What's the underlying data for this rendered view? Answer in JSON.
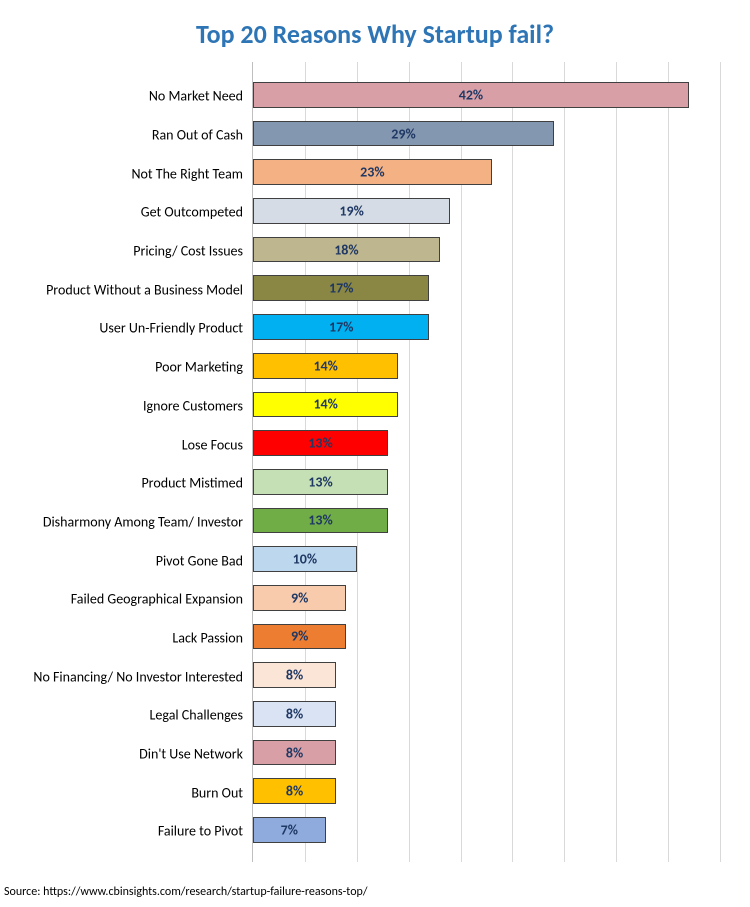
{
  "title": {
    "text": "Top 20 Reasons Why Startup fail?",
    "color": "#2e75b6",
    "fontsize": 26
  },
  "chart": {
    "type": "bar-horizontal",
    "xmax": 45,
    "gridline_step": 5,
    "gridline_color": "#d9d9d9",
    "axis_color": "#bfbfbf",
    "background_color": "#ffffff",
    "bar_border_color": "#404040",
    "label_fontsize": 14,
    "label_color": "#000000",
    "value_fontsize": 14,
    "value_color": "#1f3864",
    "bars": [
      {
        "label": "No Market Need",
        "value": 42,
        "text": "42%",
        "fill": "#d8a0a6"
      },
      {
        "label": "Ran Out of Cash",
        "value": 29,
        "text": "29%",
        "fill": "#8497b0"
      },
      {
        "label": "Not The Right Team",
        "value": 23,
        "text": "23%",
        "fill": "#f4b183"
      },
      {
        "label": "Get Outcompeted",
        "value": 19,
        "text": "19%",
        "fill": "#d6dce5"
      },
      {
        "label": "Pricing/ Cost Issues",
        "value": 18,
        "text": "18%",
        "fill": "#bdb68e"
      },
      {
        "label": "Product Without a Business Model",
        "value": 17,
        "text": "17%",
        "fill": "#8a8643"
      },
      {
        "label": "User Un-Friendly Product",
        "value": 17,
        "text": "17%",
        "fill": "#00b0f0"
      },
      {
        "label": "Poor Marketing",
        "value": 14,
        "text": "14%",
        "fill": "#ffc000"
      },
      {
        "label": "Ignore Customers",
        "value": 14,
        "text": "14%",
        "fill": "#ffff00"
      },
      {
        "label": "Lose Focus",
        "value": 13,
        "text": "13%",
        "fill": "#ff0000"
      },
      {
        "label": "Product Mistimed",
        "value": 13,
        "text": "13%",
        "fill": "#c5e0b4"
      },
      {
        "label": "Disharmony Among Team/ Investor",
        "value": 13,
        "text": "13%",
        "fill": "#70ad47"
      },
      {
        "label": "Pivot Gone Bad",
        "value": 10,
        "text": "10%",
        "fill": "#bdd7ee"
      },
      {
        "label": "Failed Geographical Expansion",
        "value": 9,
        "text": "9%",
        "fill": "#f8cbad"
      },
      {
        "label": "Lack Passion",
        "value": 9,
        "text": "9%",
        "fill": "#ed7d31"
      },
      {
        "label": "No Financing/ No Investor Interested",
        "value": 8,
        "text": "8%",
        "fill": "#fbe5d6"
      },
      {
        "label": "Legal Challenges",
        "value": 8,
        "text": "8%",
        "fill": "#dae3f3"
      },
      {
        "label": "Din't Use Network",
        "value": 8,
        "text": "8%",
        "fill": "#d8a0a6"
      },
      {
        "label": "Burn Out",
        "value": 8,
        "text": "8%",
        "fill": "#ffc000"
      },
      {
        "label": "Failure to Pivot",
        "value": 7,
        "text": "7%",
        "fill": "#8faadc"
      }
    ]
  },
  "source": {
    "text": "Source: https://www.cbinsights.com/research/startup-failure-reasons-top/",
    "fontsize": 12,
    "color": "#000000"
  }
}
